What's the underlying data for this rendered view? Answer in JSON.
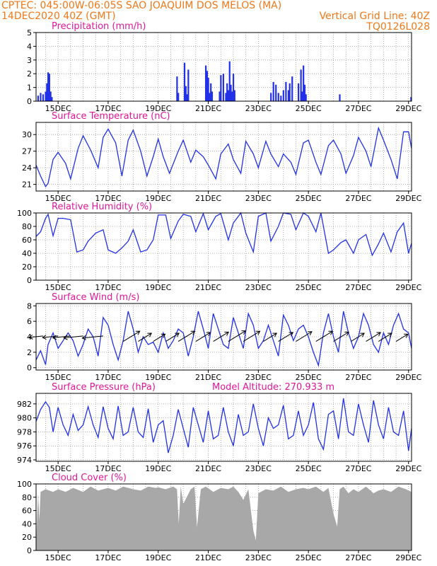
{
  "header": {
    "line1_left": "CPTEC:  045:00W-06:05S  SAO JOAQUIM DOS MELOS (MA)",
    "line2_left": "14DEC2020 40Z (GMT)",
    "line2_right": "Vertical Grid Line: 40Z",
    "line3_right": "TQ0126L028"
  },
  "colors": {
    "header": "#f07818",
    "title": "#e0179a",
    "series": "#2230e8",
    "cloud": "#a8a8a8",
    "grid": "#999999"
  },
  "x_ticks": [
    "15DEC",
    "17DEC",
    "19DEC",
    "21DEC",
    "23DEC",
    "25DEC",
    "27DEC",
    "29DEC"
  ],
  "x_tick_days": [
    15,
    17,
    19,
    21,
    23,
    25,
    27,
    29
  ],
  "chart_data": [
    {
      "type": "bar",
      "title": "Precipitation (mm/h)",
      "ylim": [
        0,
        5
      ],
      "yticks": [
        0,
        1,
        2,
        3,
        4,
        5
      ],
      "x_domain": [
        14.12,
        29.12
      ],
      "grid_step": 0.5,
      "x": [
        14.2,
        14.3,
        14.4,
        14.5,
        14.55,
        14.6,
        14.65,
        14.7,
        14.75,
        19.75,
        19.8,
        20.05,
        20.1,
        20.15,
        20.2,
        20.9,
        20.95,
        21.0,
        21.05,
        21.1,
        21.15,
        21.45,
        21.5,
        21.6,
        21.7,
        21.75,
        21.8,
        21.85,
        21.9,
        21.95,
        22.0,
        22.05,
        23.5,
        23.6,
        23.7,
        23.8,
        23.9,
        24.0,
        24.1,
        24.2,
        24.25,
        24.35,
        24.6,
        24.7,
        24.75,
        24.8,
        24.85,
        24.9,
        26.25,
        29.1
      ],
      "values": [
        0.4,
        0.6,
        0.5,
        0.7,
        1.3,
        2.1,
        2.0,
        0.7,
        0.3,
        1.8,
        0.6,
        2.8,
        1.1,
        0.5,
        2.3,
        2.6,
        2.2,
        1.7,
        0.6,
        1.3,
        0.7,
        0.7,
        1.9,
        2.0,
        0.6,
        1.3,
        0.8,
        2.9,
        1.2,
        0.7,
        2.0,
        0.8,
        0.6,
        1.4,
        1.2,
        0.6,
        0.4,
        0.8,
        1.4,
        0.8,
        1.3,
        1.8,
        1.3,
        2.3,
        0.7,
        2.6,
        1.2,
        0.5,
        0.5,
        0.3
      ]
    },
    {
      "type": "line",
      "title": "Surface Temperature (nC)",
      "ylim": [
        19.8,
        32.2
      ],
      "yticks": [
        21,
        24,
        27,
        30
      ],
      "x_domain": [
        14.12,
        29.12
      ],
      "grid_step": 0.5,
      "x": [
        14.12,
        14.3,
        14.5,
        14.6,
        14.8,
        15.0,
        15.3,
        15.5,
        15.8,
        16.0,
        16.3,
        16.6,
        16.8,
        17.0,
        17.3,
        17.55,
        17.8,
        18.0,
        18.3,
        18.55,
        18.8,
        19.0,
        19.2,
        19.45,
        19.8,
        20.0,
        20.3,
        20.5,
        20.8,
        21.0,
        21.3,
        21.5,
        21.8,
        22.0,
        22.3,
        22.5,
        22.8,
        23.0,
        23.3,
        23.5,
        23.8,
        24.0,
        24.3,
        24.5,
        24.8,
        25.0,
        25.3,
        25.5,
        25.8,
        26.0,
        26.3,
        26.5,
        26.8,
        27.0,
        27.3,
        27.5,
        27.8,
        28.0,
        28.3,
        28.55,
        28.8,
        29.0,
        29.12
      ],
      "values": [
        24.5,
        22.5,
        20.6,
        21.2,
        25.5,
        26.8,
        24.8,
        22.0,
        27.5,
        29.8,
        27.2,
        24.0,
        29.5,
        31.0,
        28.5,
        22.5,
        29.0,
        30.8,
        27.0,
        22.5,
        26.0,
        29.2,
        26.0,
        23.0,
        27.0,
        29.0,
        25.0,
        27.2,
        26.0,
        24.5,
        22.0,
        26.5,
        28.3,
        25.5,
        23.0,
        28.8,
        26.5,
        24.0,
        28.8,
        26.5,
        24.2,
        26.5,
        25.0,
        22.8,
        28.5,
        29.0,
        25.0,
        22.8,
        28.0,
        29.0,
        26.5,
        23.0,
        26.2,
        29.5,
        27.0,
        24.2,
        31.2,
        29.0,
        25.5,
        22.0,
        30.5,
        30.5,
        27.5
      ]
    },
    {
      "type": "line",
      "title": "Relative Humidity (%)",
      "ylim": [
        0,
        100
      ],
      "yticks": [
        0,
        20,
        40,
        60,
        80,
        100
      ],
      "x_domain": [
        14.12,
        29.12
      ],
      "grid_step": 0.5,
      "x": [
        14.12,
        14.3,
        14.5,
        14.6,
        14.8,
        15.0,
        15.2,
        15.5,
        15.75,
        16.0,
        16.2,
        16.5,
        16.8,
        17.0,
        17.3,
        17.55,
        17.8,
        18.0,
        18.3,
        18.55,
        18.8,
        19.0,
        19.3,
        19.5,
        19.8,
        20.0,
        20.3,
        20.5,
        20.8,
        21.0,
        21.3,
        21.5,
        21.8,
        22.0,
        22.3,
        22.5,
        22.8,
        23.0,
        23.3,
        23.5,
        23.8,
        24.0,
        24.3,
        24.5,
        24.8,
        25.0,
        25.3,
        25.5,
        25.8,
        26.0,
        26.3,
        26.5,
        26.8,
        27.0,
        27.3,
        27.55,
        27.8,
        28.0,
        28.3,
        28.55,
        28.8,
        29.0,
        29.12
      ],
      "values": [
        65,
        72,
        92,
        98,
        66,
        92,
        92,
        90,
        42,
        45,
        58,
        70,
        75,
        45,
        40,
        48,
        58,
        75,
        42,
        45,
        60,
        97,
        97,
        62,
        88,
        98,
        95,
        72,
        99,
        75,
        95,
        99,
        60,
        85,
        100,
        70,
        42,
        95,
        100,
        58,
        80,
        100,
        98,
        75,
        100,
        95,
        72,
        100,
        40,
        45,
        56,
        60,
        40,
        60,
        68,
        37,
        54,
        70,
        42,
        72,
        85,
        40,
        55
      ]
    },
    {
      "type": "line",
      "title": "Surface Wind (m/s)",
      "ylim": [
        -0.3,
        8.3
      ],
      "yticks": [
        0,
        2,
        4,
        6,
        8
      ],
      "x_domain": [
        14.12,
        29.12
      ],
      "grid_step": 0.5,
      "x": [
        14.12,
        14.3,
        14.5,
        14.6,
        14.8,
        15.0,
        15.2,
        15.4,
        15.6,
        15.8,
        16.0,
        16.2,
        16.4,
        16.6,
        16.8,
        17.0,
        17.2,
        17.4,
        17.6,
        17.8,
        18.0,
        18.2,
        18.4,
        18.6,
        18.8,
        19.0,
        19.2,
        19.4,
        19.6,
        19.8,
        20.0,
        20.2,
        20.4,
        20.6,
        20.8,
        21.0,
        21.2,
        21.4,
        21.6,
        21.8,
        22.0,
        22.2,
        22.4,
        22.6,
        22.8,
        23.0,
        23.2,
        23.4,
        23.6,
        23.8,
        24.0,
        24.2,
        24.4,
        24.6,
        24.8,
        25.0,
        25.2,
        25.4,
        25.6,
        25.8,
        26.0,
        26.2,
        26.4,
        26.6,
        26.8,
        27.0,
        27.2,
        27.4,
        27.6,
        27.8,
        28.0,
        28.2,
        28.4,
        28.6,
        28.8,
        29.0,
        29.12
      ],
      "values": [
        1.0,
        2.2,
        0.4,
        3.0,
        4.5,
        2.5,
        3.5,
        4.5,
        3.5,
        1.5,
        3.0,
        5.0,
        4.0,
        1.5,
        6.5,
        5.5,
        3.0,
        1.0,
        3.5,
        7.3,
        5.0,
        2.0,
        4.0,
        3.0,
        3.3,
        2.0,
        4.5,
        2.5,
        3.5,
        5.0,
        4.5,
        1.5,
        4.0,
        7.3,
        5.0,
        2.5,
        7.0,
        5.0,
        3.0,
        2.5,
        6.5,
        4.5,
        2.5,
        7.0,
        5.5,
        2.5,
        3.5,
        5.5,
        3.5,
        1.5,
        6.8,
        5.5,
        3.5,
        5.0,
        5.5,
        4.0,
        2.0,
        0.3,
        4.5,
        7.0,
        4.0,
        2.0,
        7.3,
        4.5,
        2.5,
        4.0,
        7.0,
        5.5,
        3.0,
        2.0,
        4.5,
        3.0,
        5.5,
        7.0,
        5.0,
        4.5,
        2.5
      ]
    },
    {
      "type": "line",
      "title": "Surface Pressure (hPa)",
      "subtitle": "Model Altitude: 270.933 m",
      "ylim": [
        973.8,
        983.5
      ],
      "yticks": [
        974,
        976,
        978,
        980,
        982
      ],
      "x_domain": [
        14.12,
        29.12
      ],
      "grid_step": 0.5,
      "x": [
        14.12,
        14.3,
        14.5,
        14.65,
        14.8,
        15.0,
        15.2,
        15.4,
        15.6,
        15.8,
        16.0,
        16.2,
        16.4,
        16.6,
        16.8,
        17.0,
        17.2,
        17.4,
        17.6,
        17.8,
        18.0,
        18.2,
        18.4,
        18.6,
        18.8,
        19.0,
        19.2,
        19.4,
        19.6,
        19.8,
        20.0,
        20.2,
        20.4,
        20.6,
        20.8,
        21.0,
        21.2,
        21.4,
        21.6,
        21.8,
        22.0,
        22.2,
        22.4,
        22.6,
        22.8,
        23.0,
        23.2,
        23.4,
        23.6,
        23.8,
        24.0,
        24.2,
        24.4,
        24.6,
        24.8,
        25.0,
        25.2,
        25.4,
        25.6,
        25.8,
        26.0,
        26.2,
        26.4,
        26.6,
        26.8,
        27.0,
        27.2,
        27.4,
        27.6,
        27.8,
        28.0,
        28.2,
        28.4,
        28.6,
        28.8,
        29.0,
        29.12
      ],
      "values": [
        979.5,
        981.2,
        982.3,
        981.5,
        978.0,
        981.5,
        979.0,
        977.5,
        980.5,
        978.2,
        979.0,
        981.6,
        979.0,
        977.2,
        981.6,
        978.5,
        977.0,
        981.7,
        977.5,
        978.0,
        981.5,
        978.0,
        977.2,
        981.3,
        976.5,
        979.0,
        979.6,
        975.0,
        977.5,
        981.2,
        978.5,
        975.8,
        981.5,
        979.0,
        976.5,
        981.0,
        977.0,
        977.5,
        981.5,
        978.0,
        976.0,
        980.5,
        977.5,
        978.0,
        982.0,
        978.5,
        976.0,
        980.0,
        978.5,
        979.0,
        981.8,
        977.0,
        977.5,
        981.0,
        977.5,
        979.0,
        982.2,
        977.0,
        975.5,
        980.5,
        981.0,
        977.0,
        982.8,
        978.0,
        977.5,
        982.0,
        979.0,
        976.5,
        982.5,
        979.0,
        977.0,
        981.5,
        978.0,
        977.5,
        981.0,
        975.3,
        978.5
      ]
    },
    {
      "type": "area",
      "title": "Cloud Cover (%)",
      "ylim": [
        0,
        100
      ],
      "yticks": [
        0,
        20,
        40,
        60,
        80,
        100
      ],
      "x_domain": [
        14.12,
        29.12
      ],
      "grid_step": 0.5,
      "x": [
        14.12,
        14.2,
        14.25,
        14.3,
        14.5,
        14.8,
        15.0,
        15.3,
        15.6,
        16.0,
        16.3,
        16.6,
        17.0,
        17.3,
        17.6,
        18.0,
        18.3,
        18.6,
        18.9,
        19.0,
        19.3,
        19.6,
        19.75,
        19.82,
        19.9,
        20.0,
        20.3,
        20.45,
        20.55,
        20.7,
        20.9,
        21.2,
        21.5,
        21.8,
        22.0,
        22.2,
        22.4,
        22.6,
        22.8,
        22.9,
        23.0,
        23.3,
        23.6,
        23.9,
        24.2,
        24.5,
        24.8,
        25.0,
        25.3,
        25.6,
        25.8,
        26.0,
        26.15,
        26.25,
        26.4,
        26.6,
        26.8,
        27.0,
        27.3,
        27.6,
        27.8,
        28.0,
        28.3,
        28.6,
        28.9,
        29.0,
        29.12
      ],
      "values": [
        10,
        85,
        45,
        88,
        92,
        88,
        92,
        88,
        94,
        88,
        96,
        90,
        94,
        90,
        96,
        92,
        90,
        96,
        94,
        95,
        92,
        96,
        92,
        40,
        96,
        70,
        92,
        96,
        35,
        92,
        96,
        88,
        94,
        92,
        96,
        88,
        76,
        92,
        30,
        15,
        86,
        92,
        90,
        96,
        88,
        92,
        94,
        92,
        96,
        88,
        94,
        55,
        36,
        92,
        96,
        86,
        92,
        88,
        96,
        86,
        90,
        92,
        88,
        96,
        92,
        90,
        88
      ]
    }
  ],
  "wind_arrows": [
    {
      "x": 14.4,
      "len": 1.8,
      "dir": -1
    },
    {
      "x": 15.0,
      "len": 2.0,
      "dir": -1
    },
    {
      "x": 15.5,
      "len": 2.3,
      "dir": -1
    },
    {
      "x": 16.0,
      "len": 2.5,
      "dir": -1
    },
    {
      "x": 16.8,
      "len": 2.7,
      "dir": -1
    },
    {
      "x": 17.6,
      "len": 2.5,
      "dir": 1
    },
    {
      "x": 18.2,
      "len": 2.0,
      "dir": 1
    },
    {
      "x": 18.8,
      "len": 1.8,
      "dir": 1
    },
    {
      "x": 19.3,
      "len": 2.0,
      "dir": 1
    },
    {
      "x": 19.8,
      "len": 2.5,
      "dir": 1
    },
    {
      "x": 20.5,
      "len": 2.2,
      "dir": 1
    },
    {
      "x": 21.2,
      "len": 2.3,
      "dir": 1
    },
    {
      "x": 21.8,
      "len": 2.6,
      "dir": 1
    },
    {
      "x": 22.4,
      "len": 2.5,
      "dir": 1
    },
    {
      "x": 23.2,
      "len": 2.0,
      "dir": 1
    },
    {
      "x": 23.8,
      "len": 2.2,
      "dir": 1
    },
    {
      "x": 24.5,
      "len": 2.4,
      "dir": 1
    },
    {
      "x": 25.3,
      "len": 2.5,
      "dir": 1
    },
    {
      "x": 26.0,
      "len": 2.3,
      "dir": 1
    },
    {
      "x": 26.7,
      "len": 2.0,
      "dir": 1
    },
    {
      "x": 27.3,
      "len": 2.2,
      "dir": 1
    },
    {
      "x": 27.8,
      "len": 2.0,
      "dir": 1
    },
    {
      "x": 28.5,
      "len": 1.8,
      "dir": 1
    }
  ]
}
